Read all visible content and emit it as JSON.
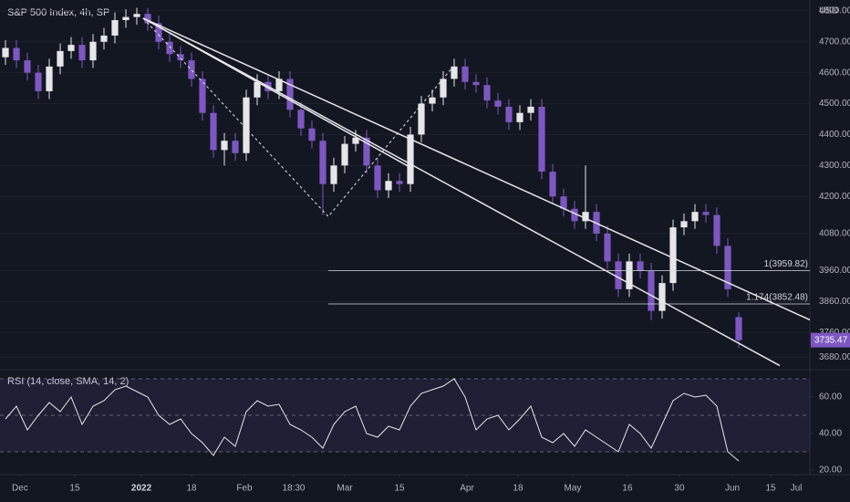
{
  "chart_data": [
    {
      "type": "candlestick",
      "title": "S&P 500 Index, 4h, SP",
      "currency": "USD",
      "up_color": "#e6e6ea",
      "down_color": "#7e57c2",
      "open": [
        4650,
        4680,
        4640,
        4600,
        4540,
        4620,
        4670,
        4690,
        4640,
        4700,
        4720,
        4770,
        4780,
        4790,
        4760,
        4700,
        4660,
        4640,
        4580,
        4470,
        4350,
        4380,
        4340,
        4520,
        4570,
        4540,
        4580,
        4480,
        4420,
        4380,
        4240,
        4300,
        4370,
        4390,
        4300,
        4220,
        4250,
        4240,
        4400,
        4500,
        4520,
        4580,
        4620,
        4570,
        4560,
        4510,
        4490,
        4440,
        4470,
        4490,
        4280,
        4200,
        4160,
        4120,
        4150,
        4080,
        3990,
        3900,
        3990,
        3960,
        3830,
        3920,
        4100,
        4120,
        4150,
        4140,
        4040,
        3810
      ],
      "high": [
        4705,
        4705,
        4665,
        4625,
        4645,
        4695,
        4715,
        4715,
        4725,
        4745,
        4795,
        4805,
        4810,
        4810,
        4785,
        4725,
        4685,
        4665,
        4605,
        4495,
        4405,
        4405,
        4545,
        4595,
        4595,
        4605,
        4605,
        4505,
        4445,
        4405,
        4325,
        4395,
        4415,
        4415,
        4325,
        4275,
        4275,
        4425,
        4525,
        4545,
        4605,
        4645,
        4645,
        4595,
        4585,
        4535,
        4515,
        4495,
        4515,
        4515,
        4305,
        4225,
        4185,
        4300,
        4175,
        4105,
        4015,
        4015,
        4015,
        3985,
        3945,
        4125,
        4145,
        4175,
        4175,
        4165,
        4065,
        3825
      ],
      "low": [
        4625,
        4615,
        4575,
        4515,
        4515,
        4595,
        4645,
        4615,
        4615,
        4675,
        4695,
        4745,
        4755,
        4735,
        4675,
        4635,
        4615,
        4555,
        4445,
        4325,
        4300,
        4315,
        4315,
        4495,
        4515,
        4515,
        4455,
        4395,
        4355,
        4140,
        4215,
        4275,
        4345,
        4275,
        4195,
        4195,
        4215,
        4215,
        4375,
        4475,
        4495,
        4555,
        4545,
        4535,
        4485,
        4465,
        4415,
        4415,
        4445,
        4255,
        4175,
        4135,
        4095,
        4095,
        4055,
        3965,
        3875,
        3875,
        3935,
        3800,
        3805,
        3895,
        4075,
        4095,
        4115,
        4015,
        3875,
        3710
      ],
      "close": [
        4680,
        4640,
        4600,
        4540,
        4620,
        4670,
        4690,
        4640,
        4700,
        4720,
        4770,
        4780,
        4790,
        4760,
        4700,
        4660,
        4640,
        4580,
        4470,
        4350,
        4380,
        4340,
        4520,
        4570,
        4540,
        4580,
        4480,
        4420,
        4380,
        4240,
        4300,
        4370,
        4390,
        4300,
        4220,
        4250,
        4240,
        4400,
        4500,
        4520,
        4580,
        4620,
        4570,
        4560,
        4510,
        4490,
        4440,
        4470,
        4490,
        4280,
        4200,
        4160,
        4120,
        4150,
        4080,
        3990,
        3900,
        3990,
        3960,
        3830,
        3920,
        4100,
        4120,
        4150,
        4140,
        4040,
        3900,
        3735
      ],
      "last_price": 3735.47,
      "xlim": [
        -0.5,
        73.5
      ],
      "ylim": [
        3640,
        4835
      ],
      "yticks": [
        {
          "value": 4800,
          "label": "4800.00"
        },
        {
          "value": 4700,
          "label": "4700.00"
        },
        {
          "value": 4600,
          "label": "4600.00"
        },
        {
          "value": 4500,
          "label": "4500.00"
        },
        {
          "value": 4400,
          "label": "4400.00"
        },
        {
          "value": 4300,
          "label": "4300.00"
        },
        {
          "value": 4200,
          "label": "4200.00"
        },
        {
          "value": 4080,
          "label": "4080.00"
        },
        {
          "value": 3960,
          "label": "3960.00"
        },
        {
          "value": 3860,
          "label": "3860.00"
        },
        {
          "value": 3760,
          "label": "3760.00"
        },
        {
          "value": 3680,
          "label": "3680.00"
        }
      ],
      "trendlines": [
        {
          "x": [
            12.58,
            73.5
          ],
          "y": [
            4776,
            3801
          ],
          "color": "#e6e6ea",
          "style": "solid"
        },
        {
          "x": [
            12.58,
            70.75
          ],
          "y": [
            4776,
            3653
          ],
          "color": "#e6e6ea",
          "style": "solid"
        },
        {
          "x": [
            12.58,
            36.83
          ],
          "y": [
            4776,
            4297
          ],
          "color": "#e6e6ea",
          "style": "solid"
        },
        {
          "x": [
            12.58,
            29.5,
            40.75
          ],
          "y": [
            4776,
            4135,
            4613
          ],
          "color": "#e6e6ea",
          "style": "dashed"
        }
      ],
      "fib_start": 29.5,
      "fib_levels": [
        {
          "value": 3959.82,
          "label": "1(3959.82)"
        },
        {
          "value": 3852.48,
          "label": "1.174(3852.48)"
        }
      ]
    },
    {
      "type": "line",
      "title": "RSI (14, close, SMA, 14, 2)",
      "color": "#e6e6ea",
      "values": [
        48,
        55,
        42,
        50,
        57,
        52,
        60,
        45,
        55,
        58,
        64,
        66,
        63,
        60,
        50,
        45,
        48,
        40,
        35,
        28,
        38,
        33,
        52,
        58,
        55,
        56,
        45,
        42,
        38,
        32,
        45,
        52,
        55,
        40,
        38,
        44,
        42,
        55,
        62,
        64,
        66,
        70,
        60,
        42,
        48,
        50,
        42,
        48,
        55,
        38,
        35,
        40,
        33,
        42,
        38,
        34,
        30,
        45,
        40,
        32,
        45,
        58,
        62,
        60,
        61,
        55,
        30,
        25
      ],
      "bands": [
        70,
        50,
        30
      ],
      "band_color": "#7e57c2",
      "xlim": [
        -0.5,
        73.5
      ],
      "ylim": [
        17.5,
        75
      ],
      "yticks": [
        {
          "value": 60,
          "label": "60.00"
        },
        {
          "value": 40,
          "label": "40.00"
        },
        {
          "value": 20,
          "label": "20.00"
        }
      ],
      "xticks": [
        {
          "value": 1.33,
          "label": "Dec"
        },
        {
          "value": 6.33,
          "label": "15"
        },
        {
          "value": 12.42,
          "label": "2022"
        },
        {
          "value": 17,
          "label": "18"
        },
        {
          "value": 21.83,
          "label": "Feb"
        },
        {
          "value": 26.33,
          "label": "18:30"
        },
        {
          "value": 31,
          "label": "Mar"
        },
        {
          "value": 36,
          "label": "15"
        },
        {
          "value": 42.17,
          "label": "Apr"
        },
        {
          "value": 46.83,
          "label": "18"
        },
        {
          "value": 51.83,
          "label": "May"
        },
        {
          "value": 56.83,
          "label": "16"
        },
        {
          "value": 61.58,
          "label": "30"
        },
        {
          "value": 66.42,
          "label": "Jun"
        },
        {
          "value": 69.92,
          "label": "15"
        },
        {
          "value": 72.25,
          "label": "Jul"
        }
      ]
    }
  ]
}
